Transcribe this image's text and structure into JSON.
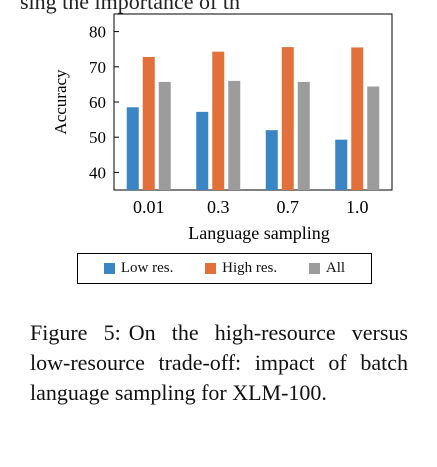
{
  "chart_data": {
    "type": "bar",
    "title": "",
    "xlabel": "Language sampling",
    "ylabel": "Accuracy",
    "ylim": [
      35,
      85
    ],
    "yticks": [
      40,
      50,
      60,
      70,
      80
    ],
    "categories": [
      "0.01",
      "0.3",
      "0.7",
      "1.0"
    ],
    "series": [
      {
        "name": "Low res.",
        "color": "#3a86c4",
        "values": [
          58.5,
          57.2,
          52.0,
          49.3
        ]
      },
      {
        "name": "High res.",
        "color": "#e2703a",
        "values": [
          72.8,
          74.3,
          75.6,
          75.5
        ]
      },
      {
        "name": "All",
        "color": "#9c9c9c",
        "values": [
          65.7,
          66.0,
          65.7,
          64.4
        ]
      }
    ],
    "grid": false,
    "legend_position": "bottom"
  },
  "header": {
    "partial_text": "sing   the   importance   of   th"
  },
  "caption": {
    "label": "Figure 5:",
    "text": "On the high-resource versus low-resource trade-off: impact of batch language sampling for XLM-100."
  }
}
